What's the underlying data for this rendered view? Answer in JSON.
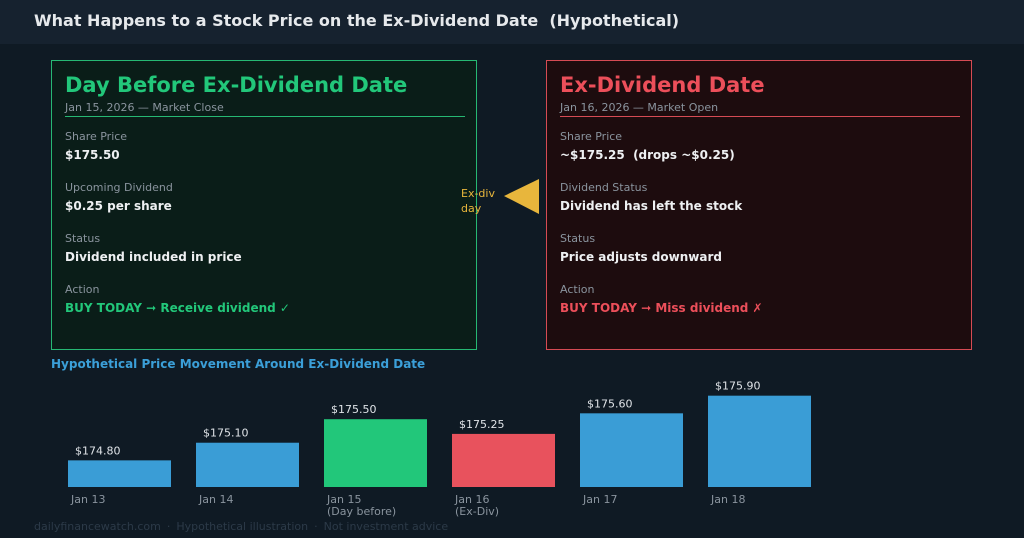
{
  "header": {
    "title": "What Happens to a Stock Price on the Ex-Dividend Date  (Hypothetical)"
  },
  "left_panel": {
    "title": "Day Before Ex-Dividend Date",
    "subtitle": "Jan 15, 2026 — Market Close",
    "share_price_label": "Share Price",
    "share_price_value": "$175.50",
    "dividend_label": "Upcoming Dividend",
    "dividend_value": "$0.25 per share",
    "status_label": "Status",
    "status_value": "Dividend included in price",
    "action_label": "Action",
    "action_value": "BUY TODAY ➞ Receive dividend ✓"
  },
  "right_panel": {
    "title": "Ex-Dividend Date",
    "subtitle": "Jan 16, 2026 — Market Open",
    "share_price_label": "Share Price",
    "share_price_value": "~$175.25  (drops ~$0.25)",
    "dividend_label": "Dividend Status",
    "dividend_value": "Dividend has left the stock",
    "status_label": "Status",
    "status_value": "Price adjusts downward",
    "action_label": "Action",
    "action_value": "BUY TODAY ➞ Miss dividend ✗"
  },
  "arrow": {
    "label": "Ex-div day",
    "color": "#e8b63c",
    "icon": "arrow-left-icon"
  },
  "chart_data": {
    "type": "bar",
    "title": "Hypothetical Price Movement Around Ex-Dividend Date",
    "categories": [
      "Jan 13",
      "Jan 14",
      "Jan 15\n(Day before)",
      "Jan 16\n(Ex-Div)",
      "Jan 17",
      "Jan 18"
    ],
    "values": [
      174.8,
      175.1,
      175.5,
      175.25,
      175.6,
      175.9
    ],
    "value_labels": [
      "$174.80",
      "$175.10",
      "$175.50",
      "$175.25",
      "$175.60",
      "$175.90"
    ],
    "colors": [
      "#3a9dd6",
      "#3a9dd6",
      "#22c77a",
      "#e8525d",
      "#3a9dd6",
      "#3a9dd6"
    ],
    "xlabel": "",
    "ylabel": "",
    "ylim": [
      174.5,
      176.0
    ],
    "grid": false,
    "legend": "none"
  },
  "footer": {
    "items": [
      "dailyfinancewatch.com",
      "Hypothetical illustration",
      "Not investment advice"
    ],
    "separator": "·"
  },
  "colors": {
    "background": "#0f1a24",
    "header": "#16222f",
    "green_accent": "#22c77a",
    "red_accent": "#ec4f5a",
    "blue_accent": "#3b9fd8"
  }
}
